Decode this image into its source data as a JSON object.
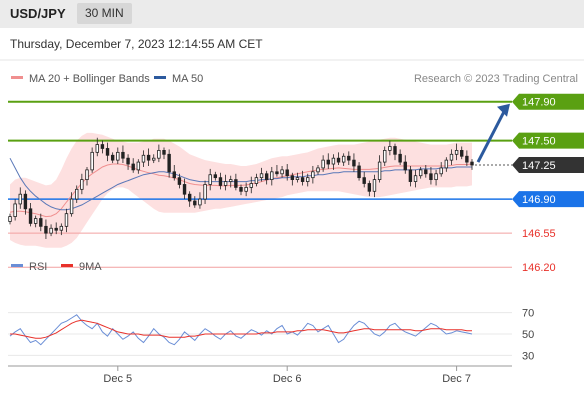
{
  "header": {
    "symbol": "USD/JPY",
    "timeframe": "30 MIN",
    "datetime": "Thursday, December 7, 2023 12:14:55 AM CET"
  },
  "chart_data": [
    {
      "type": "candlestick",
      "legend": [
        {
          "name": "MA 20 + Bollinger Bands",
          "color": "#f08f8f"
        },
        {
          "name": "MA 50",
          "color": "#2c5a9e"
        }
      ],
      "watermark": "Research © 2023 Trading Central",
      "ylim": [
        146.12,
        148.0
      ],
      "price_labels": [
        {
          "label": "147.90",
          "value": 147.9,
          "style": "target",
          "color": "#5aa012"
        },
        {
          "label": "147.50",
          "value": 147.5,
          "style": "resistance",
          "color": "#5aa012"
        },
        {
          "label": "147.25",
          "value": 147.25,
          "style": "current",
          "color": "#333333"
        },
        {
          "label": "146.90",
          "value": 146.9,
          "style": "pivot",
          "color": "#1a73e8"
        },
        {
          "label": "146.55",
          "value": 146.55,
          "style": "support",
          "color": "#e8312a"
        },
        {
          "label": "146.20",
          "value": 146.2,
          "style": "support",
          "color": "#e8312a"
        }
      ],
      "close": [
        146.72,
        146.85,
        146.95,
        146.8,
        146.65,
        146.7,
        146.62,
        146.55,
        146.6,
        146.58,
        146.62,
        146.75,
        146.9,
        147.0,
        147.1,
        147.2,
        147.38,
        147.46,
        147.42,
        147.35,
        147.3,
        147.38,
        147.32,
        147.26,
        147.2,
        147.28,
        147.35,
        147.3,
        147.32,
        147.4,
        147.36,
        147.18,
        147.12,
        147.05,
        146.95,
        146.88,
        146.84,
        146.9,
        147.05,
        147.15,
        147.12,
        147.04,
        147.08,
        147.1,
        147.02,
        146.98,
        147.02,
        147.06,
        147.12,
        147.16,
        147.1,
        147.18,
        147.16,
        147.2,
        147.14,
        147.1,
        147.12,
        147.08,
        147.12,
        147.18,
        147.22,
        147.3,
        147.26,
        147.32,
        147.28,
        147.34,
        147.3,
        147.24,
        147.12,
        147.06,
        146.98,
        147.1,
        147.28,
        147.4,
        147.44,
        147.36,
        147.28,
        147.2,
        147.08,
        147.14,
        147.2,
        147.16,
        147.1,
        147.16,
        147.22,
        147.3,
        147.36,
        147.4,
        147.34,
        147.28,
        147.25
      ],
      "ma50": [
        147.32,
        147.22,
        147.12,
        147.04,
        146.98,
        146.93,
        146.89,
        146.85,
        146.82,
        146.8,
        146.79,
        146.79,
        146.8,
        146.82,
        146.84,
        146.87,
        146.9,
        146.93,
        146.96,
        146.99,
        147.02,
        147.05,
        147.07,
        147.09,
        147.11,
        147.13,
        147.15,
        147.16,
        147.17,
        147.18,
        147.18,
        147.17,
        147.16,
        147.14,
        147.12,
        147.1,
        147.09,
        147.08,
        147.08,
        147.08,
        147.08,
        147.08,
        147.08,
        147.08,
        147.08,
        147.08,
        147.08,
        147.09,
        147.09,
        147.1,
        147.1,
        147.11,
        147.11,
        147.12,
        147.12,
        147.13,
        147.13,
        147.13,
        147.14,
        147.14,
        147.15,
        147.15,
        147.16,
        147.17,
        147.17,
        147.18,
        147.18,
        147.18,
        147.18,
        147.18,
        147.18,
        147.18,
        147.18,
        147.19,
        147.19,
        147.2,
        147.2,
        147.2,
        147.2,
        147.2,
        147.21,
        147.21,
        147.21,
        147.21,
        147.22,
        147.22,
        147.22,
        147.23,
        147.23,
        147.23,
        147.23
      ],
      "bb_upper": [
        147.05,
        147.1,
        147.12,
        147.12,
        147.1,
        147.08,
        147.06,
        147.04,
        147.05,
        147.1,
        147.2,
        147.32,
        147.42,
        147.5,
        147.55,
        147.58,
        147.58,
        147.57,
        147.56,
        147.54,
        147.52,
        147.5,
        147.49,
        147.48,
        147.48,
        147.48,
        147.49,
        147.5,
        147.52,
        147.52,
        147.52,
        147.5,
        147.47,
        147.44,
        147.4,
        147.36,
        147.34,
        147.32,
        147.3,
        147.29,
        147.28,
        147.27,
        147.26,
        147.26,
        147.25,
        147.24,
        147.24,
        147.25,
        147.26,
        147.28,
        147.3,
        147.32,
        147.33,
        147.34,
        147.34,
        147.35,
        147.36,
        147.37,
        147.38,
        147.4,
        147.42,
        147.43,
        147.44,
        147.45,
        147.46,
        147.46,
        147.46,
        147.46,
        147.47,
        147.48,
        147.49,
        147.5,
        147.51,
        147.52,
        147.53,
        147.53,
        147.52,
        147.51,
        147.5,
        147.49,
        147.48,
        147.47,
        147.46,
        147.46,
        147.46,
        147.46,
        147.47,
        147.48,
        147.48,
        147.48,
        147.48
      ],
      "bb_lower": [
        146.48,
        146.45,
        146.43,
        146.42,
        146.42,
        146.42,
        146.41,
        146.4,
        146.4,
        146.4,
        146.4,
        146.42,
        146.45,
        146.5,
        146.58,
        146.66,
        146.74,
        146.82,
        146.9,
        146.96,
        147.0,
        147.02,
        147.02,
        147.0,
        146.96,
        146.92,
        146.88,
        146.84,
        146.8,
        146.77,
        146.76,
        146.76,
        146.76,
        146.76,
        146.76,
        146.76,
        146.76,
        146.77,
        146.78,
        146.79,
        146.8,
        146.8,
        146.81,
        146.82,
        146.83,
        146.84,
        146.85,
        146.86,
        146.87,
        146.88,
        146.89,
        146.9,
        146.91,
        146.92,
        146.94,
        146.95,
        146.96,
        146.97,
        146.98,
        146.98,
        146.98,
        146.98,
        146.98,
        146.98,
        146.98,
        146.97,
        146.96,
        146.95,
        146.94,
        146.93,
        146.92,
        146.92,
        146.92,
        146.93,
        146.94,
        146.95,
        146.96,
        146.97,
        146.98,
        146.99,
        147.0,
        147.01,
        147.02,
        147.02,
        147.02,
        147.02,
        147.02,
        147.03,
        147.03,
        147.03,
        147.04
      ],
      "forecast_arrow": {
        "from": 147.28,
        "to": 147.9
      },
      "x_ticks": [
        {
          "index": 21,
          "label": "Dec 5"
        },
        {
          "index": 54,
          "label": "Dec 6"
        },
        {
          "index": 87,
          "label": "Dec 7"
        }
      ]
    },
    {
      "type": "line",
      "legend": [
        {
          "name": "RSI",
          "color": "#6a8ed6"
        },
        {
          "name": "9MA",
          "color": "#e8312a"
        }
      ],
      "ylim": [
        20,
        80
      ],
      "y_ticks": [
        {
          "label": "70",
          "value": 70
        },
        {
          "label": "50",
          "value": 50
        },
        {
          "label": "30",
          "value": 30
        }
      ],
      "series": [
        {
          "name": "RSI",
          "values": [
            48,
            52,
            55,
            48,
            42,
            44,
            40,
            45,
            50,
            55,
            60,
            62,
            65,
            68,
            62,
            58,
            55,
            60,
            52,
            48,
            55,
            50,
            45,
            48,
            52,
            46,
            42,
            48,
            55,
            50,
            47,
            42,
            40,
            45,
            52,
            48,
            44,
            50,
            55,
            52,
            48,
            45,
            50,
            53,
            48,
            46,
            50,
            54,
            52,
            49,
            53,
            50,
            55,
            58,
            50,
            52,
            49,
            54,
            60,
            58,
            52,
            55,
            58,
            50,
            42,
            45,
            52,
            58,
            62,
            60,
            55,
            50,
            48,
            52,
            58,
            60,
            55,
            52,
            50,
            48,
            52,
            56,
            60,
            58,
            54,
            50,
            51,
            53,
            52,
            51,
            50
          ]
        },
        {
          "name": "9MA",
          "values": [
            50,
            50,
            49,
            48,
            47,
            46,
            46,
            47,
            49,
            51,
            54,
            57,
            60,
            62,
            63,
            62,
            61,
            60,
            58,
            56,
            54,
            52,
            51,
            50,
            50,
            50,
            49,
            49,
            49,
            49,
            48,
            47,
            47,
            47,
            47,
            48,
            48,
            49,
            50,
            50,
            50,
            50,
            50,
            50,
            50,
            50,
            50,
            50,
            50,
            51,
            51,
            51,
            52,
            52,
            52,
            52,
            53,
            53,
            54,
            54,
            54,
            54,
            53,
            52,
            51,
            51,
            52,
            53,
            54,
            55,
            55,
            54,
            54,
            54,
            54,
            54,
            54,
            54,
            54,
            53,
            53,
            54,
            55,
            55,
            55,
            54,
            54,
            54,
            54,
            53,
            53
          ]
        }
      ]
    }
  ]
}
